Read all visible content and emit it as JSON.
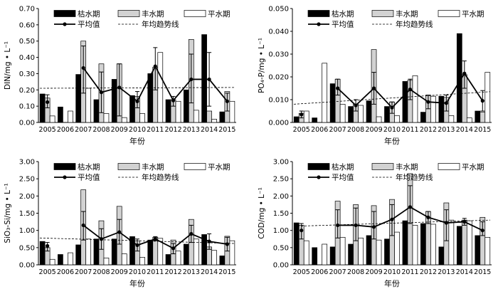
{
  "chart_data": [
    {
      "type": "bar",
      "ylabel": "DIN/mg • L⁻¹",
      "xlabel": "年份",
      "ylim": [
        0,
        0.7
      ],
      "yticks": [
        "0.00",
        "0.10",
        "0.20",
        "0.30",
        "0.40",
        "0.50",
        "0.60",
        "0.70"
      ],
      "categories": [
        "2005",
        "2006",
        "2007",
        "2008",
        "2009",
        "2010",
        "2011",
        "2012",
        "2013",
        "2014",
        "2015"
      ],
      "series": [
        {
          "name": "枯水期",
          "values": [
            0.175,
            0.095,
            0.295,
            0.14,
            0.265,
            0.165,
            0.3,
            0.14,
            0.2,
            0.54,
            0.065
          ]
        },
        {
          "name": "丰水期",
          "values": [
            0.15,
            0,
            0.5,
            0.36,
            0.36,
            0.16,
            0.34,
            0.14,
            0.51,
            0.07,
            0.19
          ]
        },
        {
          "name": "平水期",
          "values": [
            0.04,
            0.07,
            0.21,
            0.055,
            0.03,
            0.055,
            0.43,
            0.13,
            0.075,
            0.02,
            0.13
          ]
        },
        {
          "name": "平均值",
          "values": [
            0.125,
            null,
            0.335,
            0.185,
            0.215,
            0.13,
            0.345,
            0.135,
            0.265,
            0.265,
            0.13
          ]
        }
      ],
      "error_low": [
        0.09,
        null,
        0.18,
        0.06,
        0.04,
        0.09,
        0.2,
        0.1,
        0.12,
        0.1,
        0.07
      ],
      "error_high": [
        0.17,
        null,
        0.47,
        0.31,
        0.36,
        0.19,
        0.46,
        0.16,
        0.42,
        0.43,
        0.18
      ],
      "trend": {
        "name": "年均趋势线",
        "start": 0.21,
        "end": 0.215
      },
      "legend_position": "top"
    },
    {
      "type": "bar",
      "ylabel": "PO₄-P/mg • L⁻¹",
      "xlabel": "年份",
      "ylim": [
        0,
        0.05
      ],
      "yticks": [
        "0.000",
        "0.010",
        "0.020",
        "0.030",
        "0.040",
        "0.050"
      ],
      "categories": [
        "2005",
        "2006",
        "2007",
        "2008",
        "2009",
        "2010",
        "2011",
        "2012",
        "2013",
        "2014",
        "2015"
      ],
      "series": [
        {
          "name": "枯水期",
          "values": [
            0.0025,
            0.002,
            0.017,
            0.007,
            0.0095,
            0.007,
            0.018,
            0.0045,
            0.0115,
            0.039,
            0.005
          ]
        },
        {
          "name": "丰水期",
          "values": [
            0.004,
            0,
            0.019,
            0.008,
            0.032,
            0.009,
            0.0185,
            0.012,
            0.011,
            0.021,
            0.0045
          ]
        },
        {
          "name": "平水期",
          "values": [
            0.005,
            0.026,
            0.008,
            0.0075,
            0.0025,
            0.003,
            0.0205,
            0.0115,
            0.003,
            0.002,
            0.022
          ]
        },
        {
          "name": "平均值",
          "values": [
            0.0035,
            null,
            0.015,
            0.0075,
            0.015,
            0.0065,
            0.0145,
            0.009,
            0.0085,
            0.0215,
            0.0095
          ]
        }
      ],
      "error_low": [
        0.002,
        null,
        0.012,
        0.005,
        0.008,
        0.004,
        0.01,
        0.006,
        0.005,
        0.015,
        0.005
      ],
      "error_high": [
        0.005,
        null,
        0.019,
        0.01,
        0.022,
        0.009,
        0.019,
        0.012,
        0.012,
        0.027,
        0.014
      ],
      "trend": {
        "name": "年均趋势线",
        "start": 0.008,
        "end": 0.0135
      },
      "legend_position": "top"
    },
    {
      "type": "bar",
      "ylabel": "SiO₃-Si/mg • L⁻¹",
      "xlabel": "年份",
      "ylim": [
        0,
        3.0
      ],
      "yticks": [
        "0.00",
        "0.50",
        "1.00",
        "1.50",
        "2.00",
        "2.50",
        "3.00"
      ],
      "categories": [
        "2005",
        "2006",
        "2007",
        "2008",
        "2009",
        "2010",
        "2011",
        "2012",
        "2013",
        "2014",
        "2015"
      ],
      "series": [
        {
          "name": "枯水期",
          "values": [
            0.68,
            0.3,
            0.58,
            0.75,
            0.75,
            0.82,
            0.72,
            0.3,
            0.6,
            0.88,
            0.26
          ]
        },
        {
          "name": "丰水期",
          "values": [
            0.5,
            0,
            2.18,
            1.28,
            1.7,
            0.7,
            0.8,
            0.72,
            1.32,
            0.52,
            0.83
          ]
        },
        {
          "name": "平水期",
          "values": [
            0.16,
            0.35,
            0.75,
            0.2,
            0.32,
            0.22,
            0.77,
            0.4,
            0.75,
            0.42,
            0.7
          ]
        },
        {
          "name": "平均值",
          "values": [
            0.55,
            null,
            1.15,
            0.75,
            0.95,
            0.57,
            0.75,
            0.48,
            0.9,
            0.68,
            0.6
          ]
        }
      ],
      "error_low": [
        0.4,
        null,
        0.72,
        0.45,
        0.6,
        0.4,
        0.7,
        0.32,
        0.65,
        0.45,
        0.4
      ],
      "error_high": [
        0.65,
        null,
        1.55,
        1.05,
        1.32,
        0.75,
        0.82,
        0.62,
        1.15,
        0.9,
        0.8
      ],
      "trend": {
        "name": "年均趋势线",
        "start": 0.78,
        "end": 0.62
      },
      "legend_position": "top"
    },
    {
      "type": "bar",
      "ylabel": "COD/mg • L⁻¹",
      "xlabel": "年份",
      "ylim": [
        0,
        3.0
      ],
      "yticks": [
        "0.00",
        "0.50",
        "1.00",
        "1.50",
        "2.00",
        "2.50",
        "3.00"
      ],
      "categories": [
        "2005",
        "2006",
        "2007",
        "2008",
        "2009",
        "2010",
        "2011",
        "2012",
        "2013",
        "2014",
        "2015"
      ],
      "series": [
        {
          "name": "枯水期",
          "values": [
            1.22,
            0.5,
            0.52,
            0.6,
            0.85,
            0.75,
            1.28,
            1.2,
            0.52,
            1.12,
            0.85
          ]
        },
        {
          "name": "丰水期",
          "values": [
            1.15,
            0,
            1.85,
            1.75,
            1.72,
            1.9,
            2.65,
            1.55,
            1.8,
            1.3,
            1.38
          ]
        },
        {
          "name": "平水期",
          "values": [
            0.7,
            0.6,
            0.8,
            0.78,
            0.72,
            0.95,
            1.15,
            1.18,
            1.3,
            1.28,
            0.8
          ]
        },
        {
          "name": "平均值",
          "values": [
            1.0,
            null,
            1.15,
            1.15,
            1.1,
            1.32,
            1.68,
            1.38,
            1.22,
            1.25,
            1.0
          ]
        }
      ],
      "error_low": [
        0.75,
        null,
        0.78,
        0.7,
        0.75,
        0.85,
        1.2,
        1.2,
        0.7,
        1.15,
        0.85
      ],
      "error_high": [
        1.2,
        null,
        1.6,
        1.65,
        1.55,
        1.75,
        2.3,
        1.55,
        1.6,
        1.35,
        1.25
      ],
      "trend": {
        "name": "年均趋势线",
        "start": 1.12,
        "end": 1.3
      },
      "legend_position": "top"
    }
  ]
}
